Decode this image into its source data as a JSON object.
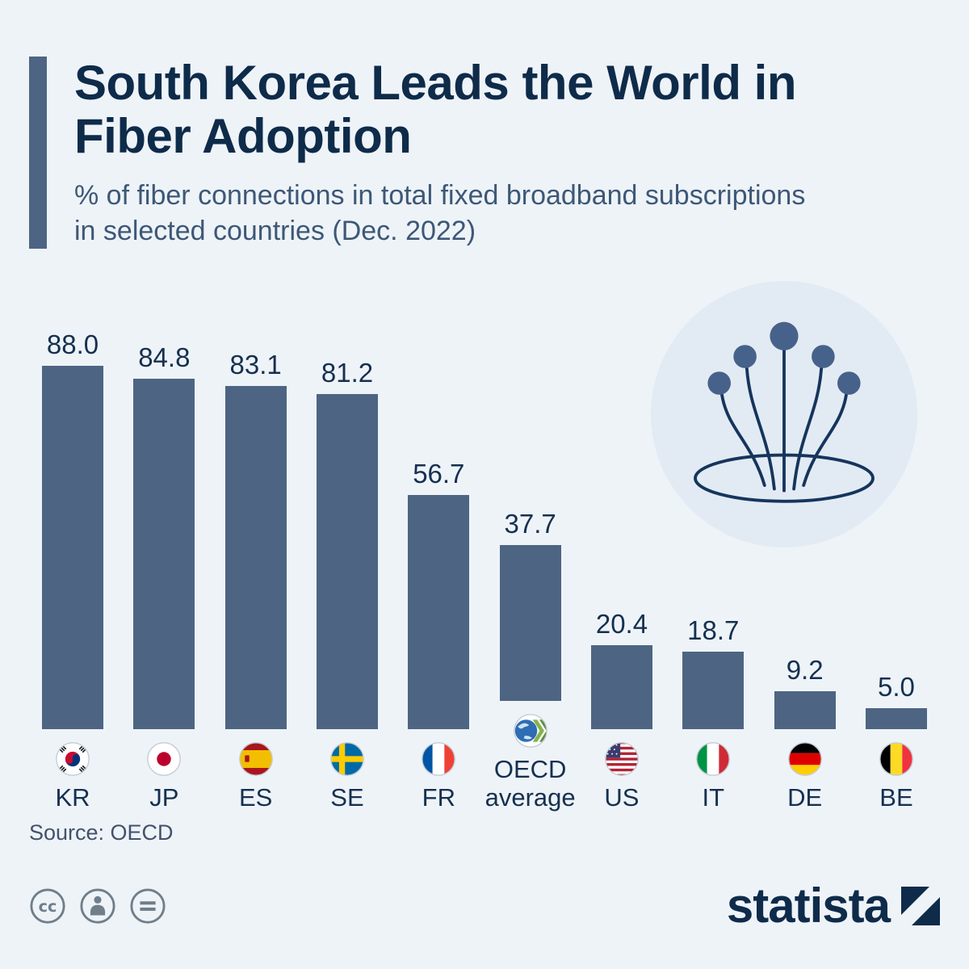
{
  "chart_data": {
    "type": "bar",
    "title": "South Korea Leads the World in Fiber Adoption",
    "subtitle": "% of fiber connections in total fixed broadband subscriptions in selected countries (Dec. 2022)",
    "unit": "%",
    "categories": [
      "KR",
      "JP",
      "ES",
      "SE",
      "FR",
      "OECD average",
      "US",
      "IT",
      "DE",
      "BE"
    ],
    "flag_codes": [
      "kr",
      "jp",
      "es",
      "se",
      "fr",
      "oecd",
      "us",
      "it",
      "de",
      "be"
    ],
    "values": [
      88.0,
      84.8,
      83.1,
      81.2,
      56.7,
      37.7,
      20.4,
      18.7,
      9.2,
      5.0
    ],
    "ylim": [
      0,
      100
    ],
    "grid": false,
    "legend": false,
    "bar_color": "#4d6582",
    "value_label_decimals": 1
  },
  "footer": {
    "source_label": "Source: OECD",
    "brand": "statista"
  },
  "colors": {
    "background": "#eef3f8",
    "bar": "#4d6582",
    "title": "#0e2b4a",
    "subtitle": "#3d5876",
    "accent_bar": "#4d6582",
    "icon_navy": "#16355c",
    "icon_dot": "#47628a",
    "icon_circle_bg": "#e2ebf4",
    "cc_gray": "#707e8a"
  },
  "icons": {
    "illustration": "fiber-optic-cables-icon",
    "license": [
      "cc-icon",
      "attribution-person-icon",
      "no-derivatives-icon"
    ],
    "brand_mark": "statista-logo-mark"
  }
}
